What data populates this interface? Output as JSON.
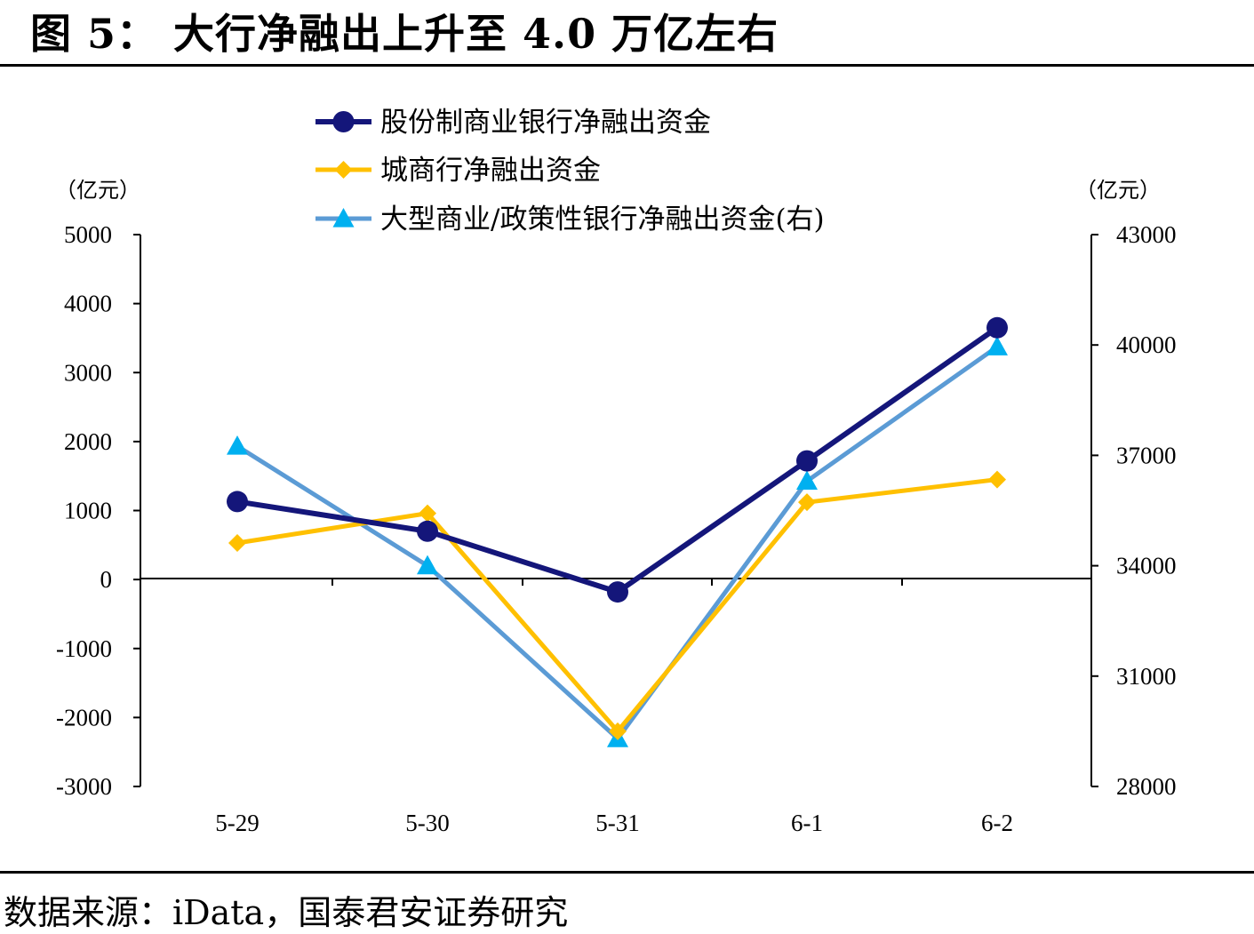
{
  "header": {
    "title": "图 5：  大行净融出上升至 4.0 万亿左右"
  },
  "footer": {
    "source": "数据来源：iData，国泰君安证券研究"
  },
  "chart_data": {
    "type": "line",
    "categories": [
      "5-29",
      "5-30",
      "5-31",
      "6-1",
      "6-2"
    ],
    "left_axis": {
      "unit": "（亿元）",
      "ylim": [
        -3000,
        5000
      ],
      "ticks": [
        "5000",
        "4000",
        "3000",
        "2000",
        "1000",
        "0",
        "-1000",
        "-2000",
        "-3000"
      ]
    },
    "right_axis": {
      "unit": "（亿元）",
      "ylim": [
        28000,
        43000
      ],
      "ticks": [
        "43000",
        "40000",
        "37000",
        "34000",
        "31000",
        "28000"
      ]
    },
    "series": [
      {
        "name": "股份制商业银行净融出资金",
        "axis": "left",
        "color": "#14167a",
        "marker": "circle",
        "values": [
          1130,
          700,
          -180,
          1720,
          3650
        ]
      },
      {
        "name": "城商行净融出资金",
        "axis": "left",
        "color": "#ffc000",
        "marker": "diamond",
        "values": [
          530,
          960,
          -2200,
          1120,
          1450
        ]
      },
      {
        "name": "大型商业/政策性银行净融出资金(右)",
        "axis": "right",
        "color": "#5b9bd5",
        "marker_color": "#00b0f0",
        "marker": "triangle",
        "values": [
          37250,
          34000,
          29300,
          36300,
          39950
        ]
      }
    ],
    "legend_position": "top-center",
    "grid": false
  }
}
